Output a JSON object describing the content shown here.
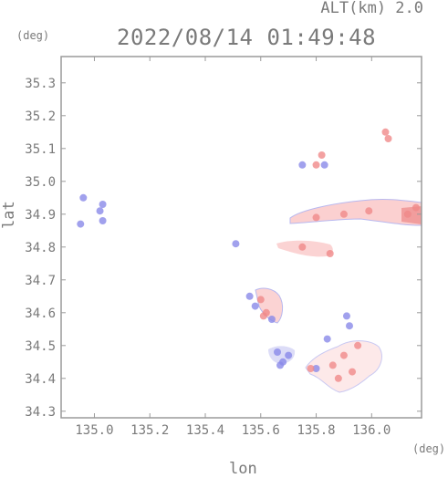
{
  "header": {
    "altitude_label": "ALT(km) 2.0",
    "datetime": "2022/08/14 01:49:48"
  },
  "axes": {
    "y_unit": "(deg)",
    "x_unit": "(deg)",
    "y_label": "lat",
    "x_label": "lon"
  },
  "chart_data": {
    "type": "heatmap",
    "xlabel": "lon",
    "ylabel": "lat",
    "xlim": [
      134.88,
      136.18
    ],
    "ylim": [
      34.28,
      35.38
    ],
    "x_ticks": [
      "135.0",
      "135.2",
      "135.4",
      "135.6",
      "135.8",
      "136.0"
    ],
    "x_tick_values": [
      135.0,
      135.2,
      135.4,
      135.6,
      135.8,
      136.0
    ],
    "y_ticks": [
      "34.3",
      "34.4",
      "34.5",
      "34.6",
      "34.7",
      "34.8",
      "34.9",
      "35.0",
      "35.1",
      "35.2",
      "35.3"
    ],
    "y_tick_values": [
      34.3,
      34.4,
      34.5,
      34.6,
      34.7,
      34.8,
      34.9,
      35.0,
      35.1,
      35.2,
      35.3
    ],
    "colors": {
      "positive": "#f08a8a",
      "positive_light": "#fbd3d3",
      "negative": "#8a8ae8",
      "negative_light": "#c9c9f4",
      "frame": "#9a9a9a"
    },
    "echo_cells": [
      {
        "lon": 134.96,
        "lat": 34.95,
        "sign": "negative"
      },
      {
        "lon": 134.95,
        "lat": 34.87,
        "sign": "negative"
      },
      {
        "lon": 135.03,
        "lat": 34.93,
        "sign": "negative"
      },
      {
        "lon": 135.03,
        "lat": 34.88,
        "sign": "negative"
      },
      {
        "lon": 135.02,
        "lat": 34.91,
        "sign": "negative"
      },
      {
        "lon": 135.51,
        "lat": 34.81,
        "sign": "negative"
      },
      {
        "lon": 135.75,
        "lat": 35.05,
        "sign": "negative"
      },
      {
        "lon": 135.8,
        "lat": 35.05,
        "sign": "positive"
      },
      {
        "lon": 135.83,
        "lat": 35.05,
        "sign": "negative"
      },
      {
        "lon": 135.82,
        "lat": 35.08,
        "sign": "positive"
      },
      {
        "lon": 136.06,
        "lat": 35.13,
        "sign": "positive"
      },
      {
        "lon": 136.05,
        "lat": 35.15,
        "sign": "positive"
      },
      {
        "lon": 135.9,
        "lat": 34.9,
        "sign": "positive"
      },
      {
        "lon": 135.8,
        "lat": 34.89,
        "sign": "positive"
      },
      {
        "lon": 135.99,
        "lat": 34.91,
        "sign": "positive"
      },
      {
        "lon": 136.13,
        "lat": 34.9,
        "sign": "positive"
      },
      {
        "lon": 136.16,
        "lat": 34.92,
        "sign": "positive"
      },
      {
        "lon": 135.75,
        "lat": 34.8,
        "sign": "positive"
      },
      {
        "lon": 135.85,
        "lat": 34.78,
        "sign": "positive"
      },
      {
        "lon": 135.6,
        "lat": 34.64,
        "sign": "positive"
      },
      {
        "lon": 135.62,
        "lat": 34.6,
        "sign": "positive"
      },
      {
        "lon": 135.58,
        "lat": 34.62,
        "sign": "negative"
      },
      {
        "lon": 135.64,
        "lat": 34.58,
        "sign": "negative"
      },
      {
        "lon": 135.61,
        "lat": 34.59,
        "sign": "positive"
      },
      {
        "lon": 135.56,
        "lat": 34.65,
        "sign": "negative"
      },
      {
        "lon": 135.91,
        "lat": 34.59,
        "sign": "negative"
      },
      {
        "lon": 135.92,
        "lat": 34.56,
        "sign": "negative"
      },
      {
        "lon": 135.66,
        "lat": 34.48,
        "sign": "negative"
      },
      {
        "lon": 135.7,
        "lat": 34.47,
        "sign": "negative"
      },
      {
        "lon": 135.68,
        "lat": 34.45,
        "sign": "negative"
      },
      {
        "lon": 135.67,
        "lat": 34.44,
        "sign": "negative"
      },
      {
        "lon": 135.9,
        "lat": 34.47,
        "sign": "positive"
      },
      {
        "lon": 135.86,
        "lat": 34.44,
        "sign": "positive"
      },
      {
        "lon": 135.95,
        "lat": 34.5,
        "sign": "positive"
      },
      {
        "lon": 135.88,
        "lat": 34.4,
        "sign": "positive"
      },
      {
        "lon": 135.93,
        "lat": 34.42,
        "sign": "positive"
      },
      {
        "lon": 135.8,
        "lat": 34.43,
        "sign": "negative"
      },
      {
        "lon": 135.78,
        "lat": 34.43,
        "sign": "positive"
      },
      {
        "lon": 135.84,
        "lat": 34.52,
        "sign": "negative"
      }
    ]
  }
}
